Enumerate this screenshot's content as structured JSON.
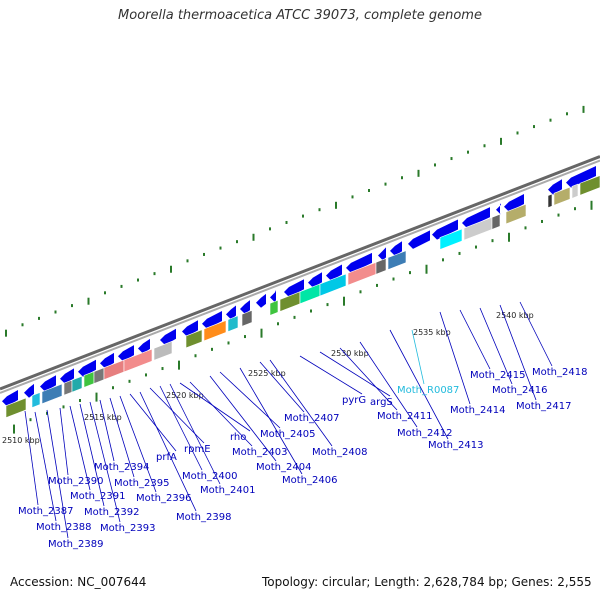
{
  "title": "Moorella thermoacetica ATCC 39073, complete genome",
  "footer": {
    "accession": "Accession: NC_007644",
    "summary": "Topology: circular; Length: 2,628,784 bp; Genes: 2,555"
  },
  "colors": {
    "backbone": "#888888",
    "forward_gene": "#0000ee",
    "tick": "#2a7a2a",
    "gene_label": "#0000bb",
    "rna_label": "#22bbdd",
    "scale_label": "#222222"
  },
  "scale_labels": [
    "2510 kbp",
    "2515 kbp",
    "2520 kbp",
    "2525 kbp",
    "2530 kbp",
    "2535 kbp",
    "2540 kbp"
  ],
  "gene_labels": [
    "Moth_2387",
    "Moth_2388",
    "Moth_2389",
    "Moth_2390",
    "Moth_2391",
    "Moth_2392",
    "Moth_2393",
    "Moth_2394",
    "Moth_2395",
    "Moth_2396",
    "prfA",
    "Moth_2398",
    "rpmE",
    "Moth_2400",
    "Moth_2401",
    "rho",
    "Moth_2403",
    "Moth_2404",
    "Moth_2405",
    "Moth_2406",
    "Moth_2407",
    "Moth_2408",
    "pyrG",
    "argS",
    "Moth_2411",
    "Moth_2412",
    "Moth_2413",
    "Moth_2414",
    "Moth_2415",
    "Moth_2416",
    "Moth_2417",
    "Moth_2418"
  ],
  "rna_labels": [
    "Moth_R0087"
  ]
}
